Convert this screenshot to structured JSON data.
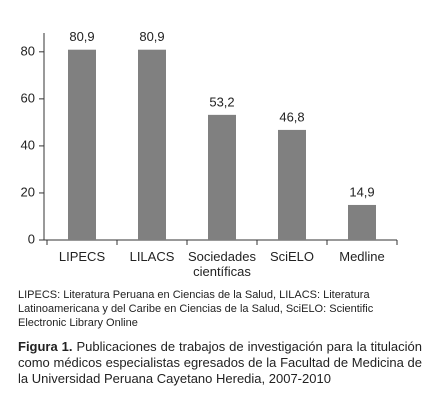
{
  "chart_data": {
    "type": "bar",
    "categories": [
      "LIPECS",
      "LILACS",
      "Sociedades científicas",
      "SciELO",
      "Medline"
    ],
    "values": [
      80.9,
      80.9,
      53.2,
      46.8,
      14.9
    ],
    "value_labels": [
      "80,9",
      "80,9",
      "53,2",
      "46,8",
      "14,9"
    ],
    "color": "#808080",
    "ylim": [
      0,
      88
    ],
    "yticks": [
      0,
      20,
      40,
      60,
      80
    ]
  },
  "figure": {
    "note": "LIPECS: Literatura Peruana en Ciencias de la Salud, LILACS: Literatura Latinoamericana y del Caribe en Ciencias de la Salud, SciELO: Scientific Electronic Library Online",
    "caption_label": "Figura 1.",
    "caption_text": "Publicaciones de trabajos de investigación para la titulación como médicos especialistas egresados de la Facultad de Medicina de la Universidad Peruana Cayetano Heredia, 2007-2010"
  }
}
